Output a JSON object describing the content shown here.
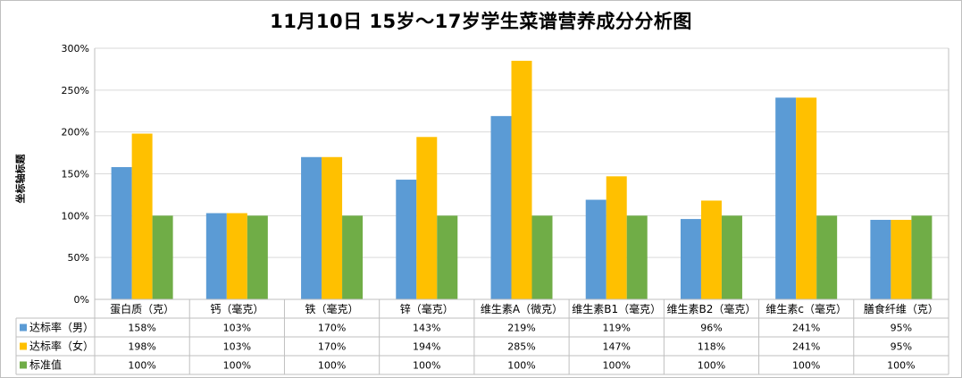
{
  "chart_data": {
    "type": "bar",
    "title": "11月10日  15岁～17岁学生菜谱营养成分分析图",
    "ylabel": "坐标轴标题",
    "xlabel": "",
    "ylim": [
      0,
      3
    ],
    "yticks": [
      "0%",
      "50%",
      "100%",
      "150%",
      "200%",
      "250%",
      "300%"
    ],
    "ytick_values": [
      0,
      0.5,
      1,
      1.5,
      2,
      2.5,
      3
    ],
    "categories": [
      "蛋白质（克）",
      "钙（毫克）",
      "铁（毫克）",
      "锌（毫克）",
      "维生素A（微克）",
      "维生素B1（毫克）",
      "维生素B2（毫克）",
      "维生素c（毫克）",
      "膳食纤维（克）"
    ],
    "series": [
      {
        "name": "达标率（男）",
        "color": "#5b9bd5",
        "values": [
          1.58,
          1.03,
          1.7,
          1.43,
          2.19,
          1.19,
          0.96,
          2.41,
          0.95
        ],
        "labels": [
          "158%",
          "103%",
          "170%",
          "143%",
          "219%",
          "119%",
          "96%",
          "241%",
          "95%"
        ]
      },
      {
        "name": "达标率（女）",
        "color": "#ffc000",
        "values": [
          1.98,
          1.03,
          1.7,
          1.94,
          2.85,
          1.47,
          1.18,
          2.41,
          0.95
        ],
        "labels": [
          "198%",
          "103%",
          "170%",
          "194%",
          "285%",
          "147%",
          "118%",
          "241%",
          "95%"
        ]
      },
      {
        "name": "标准值",
        "color": "#70ad47",
        "values": [
          1.0,
          1.0,
          1.0,
          1.0,
          1.0,
          1.0,
          1.0,
          1.0,
          1.0
        ],
        "labels": [
          "100%",
          "100%",
          "100%",
          "100%",
          "100%",
          "100%",
          "100%",
          "100%",
          "100%"
        ]
      }
    ],
    "grid": true,
    "legend": "data-table"
  }
}
